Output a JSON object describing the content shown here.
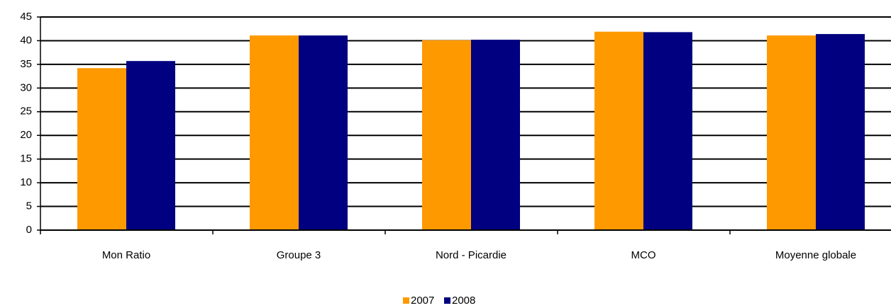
{
  "chart_data": {
    "type": "bar",
    "categories": [
      "Mon Ratio",
      "Groupe 3",
      "Nord - Picardie",
      "MCO",
      "Moyenne globale"
    ],
    "series": [
      {
        "name": "2007",
        "color": "#ff9900",
        "values": [
          34.2,
          41.1,
          40.1,
          41.9,
          41.1
        ]
      },
      {
        "name": "2008",
        "color": "#000080",
        "values": [
          35.7,
          41.1,
          40.2,
          41.8,
          41.4
        ]
      }
    ],
    "ylim": [
      0,
      45
    ],
    "yticks": [
      0,
      5,
      10,
      15,
      20,
      25,
      30,
      35,
      40,
      45
    ],
    "grid": true,
    "legend": "bottom"
  }
}
